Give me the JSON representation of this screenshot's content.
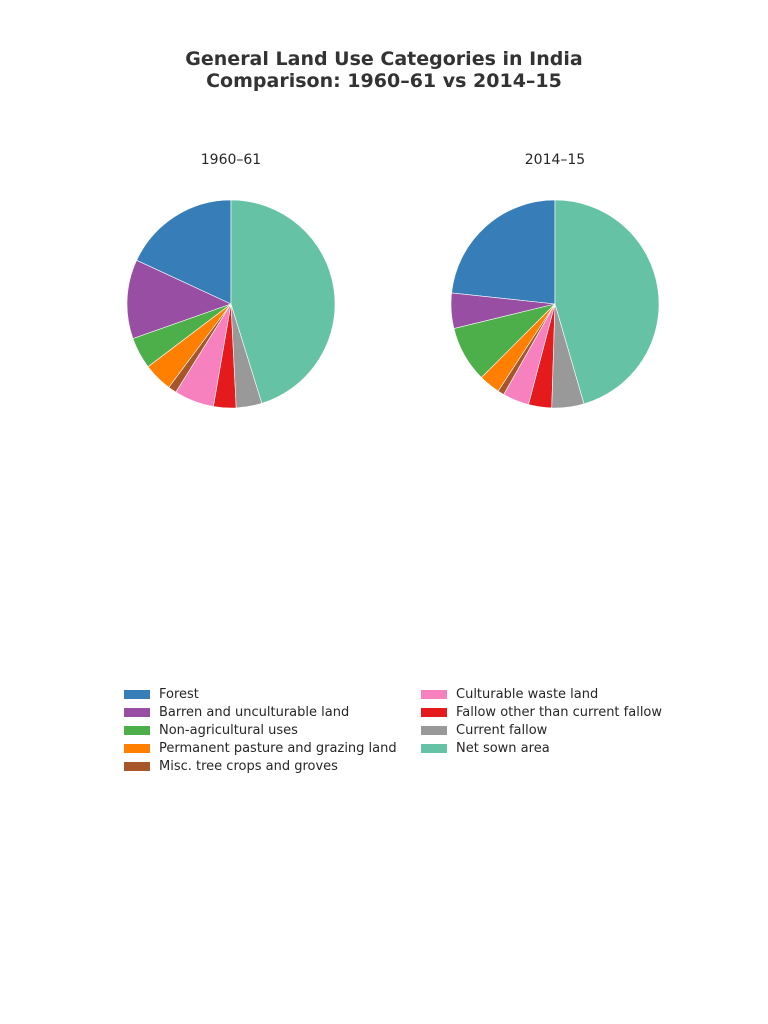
{
  "chart_data": {
    "type": "pie",
    "title": "General Land Use Categories in India",
    "subtitle": "Comparison: 1960–61 vs 2014–15",
    "legend_position": "bottom",
    "categories": [
      "Forest",
      "Barren and unculturable land",
      "Non-agricultural uses",
      "Permanent pasture and grazing land",
      "Misc. tree crops and groves",
      "Culturable waste land",
      "Fallow other than current fallow",
      "Current fallow",
      "Net sown area"
    ],
    "colors": [
      "#377eb8",
      "#984ea3",
      "#4daf4a",
      "#ff7f00",
      "#a65628",
      "#f781bf",
      "#e41a1c",
      "#999999",
      "#66c2a5"
    ],
    "series": [
      {
        "name": "1960–61",
        "values": [
          18.1,
          12.3,
          4.9,
          4.5,
          1.3,
          6.2,
          3.5,
          4.0,
          45.2
        ]
      },
      {
        "name": "2014–15",
        "values": [
          23.3,
          5.5,
          8.7,
          3.3,
          1.0,
          4.1,
          3.6,
          5.0,
          45.5
        ]
      }
    ]
  }
}
